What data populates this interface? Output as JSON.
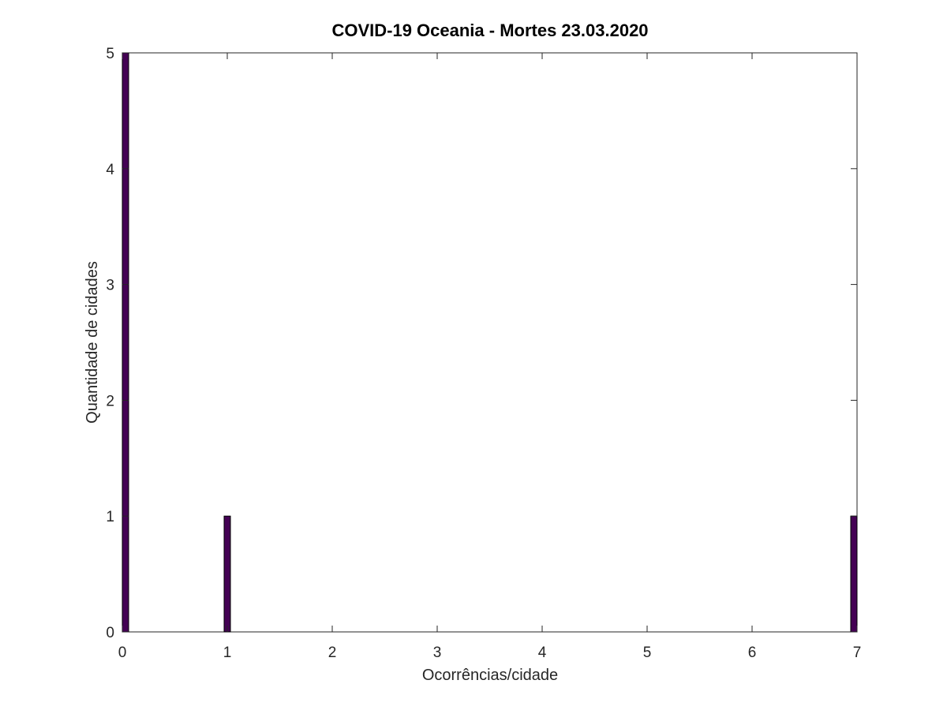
{
  "chart_data": {
    "type": "bar",
    "title": "COVID-19 Oceania - Mortes 23.03.2020",
    "xlabel": "Ocorrências/cidade",
    "ylabel": "Quantidade de cidades",
    "x": [
      0,
      1,
      7
    ],
    "values": [
      5,
      1,
      1
    ],
    "xlim": [
      0,
      7
    ],
    "ylim": [
      0,
      5
    ],
    "xticks": [
      0,
      1,
      2,
      3,
      4,
      5,
      6,
      7
    ],
    "yticks": [
      0,
      1,
      2,
      3,
      4,
      5
    ],
    "bar_color": "#440154",
    "bar_edge_color": "#000000",
    "grid": false,
    "legend": "none"
  }
}
